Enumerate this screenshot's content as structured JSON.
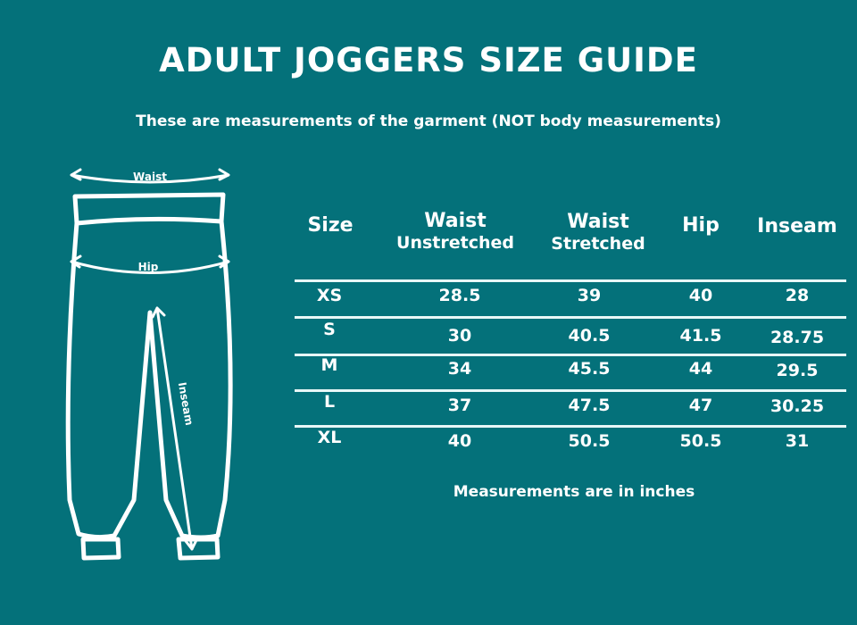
{
  "title": "ADULT JOGGERS SIZE GUIDE",
  "subtitle": "These are measurements of the garment (NOT body measurements)",
  "diagram": {
    "waist_label": "Waist",
    "hip_label": "Hip",
    "inseam_label": "Inseam"
  },
  "table": {
    "headers": [
      {
        "line1": "Size",
        "line2": ""
      },
      {
        "line1": "Waist",
        "line2": "Unstretched"
      },
      {
        "line1": "Waist",
        "line2": "Stretched"
      },
      {
        "line1": "Hip",
        "line2": ""
      },
      {
        "line1": "Inseam",
        "line2": ""
      }
    ],
    "rows": [
      [
        "XS",
        "28.5",
        "39",
        "40",
        "28"
      ],
      [
        "S",
        "30",
        "40.5",
        "41.5",
        "28.75"
      ],
      [
        "M",
        "34",
        "45.5",
        "44",
        "29.5"
      ],
      [
        "L",
        "37",
        "47.5",
        "47",
        "30.25"
      ],
      [
        "XL",
        "40",
        "50.5",
        "50.5",
        "31"
      ]
    ]
  },
  "footnote": "Measurements are in inches",
  "colors": {
    "background": "#04717a",
    "foreground": "#ffffff"
  }
}
